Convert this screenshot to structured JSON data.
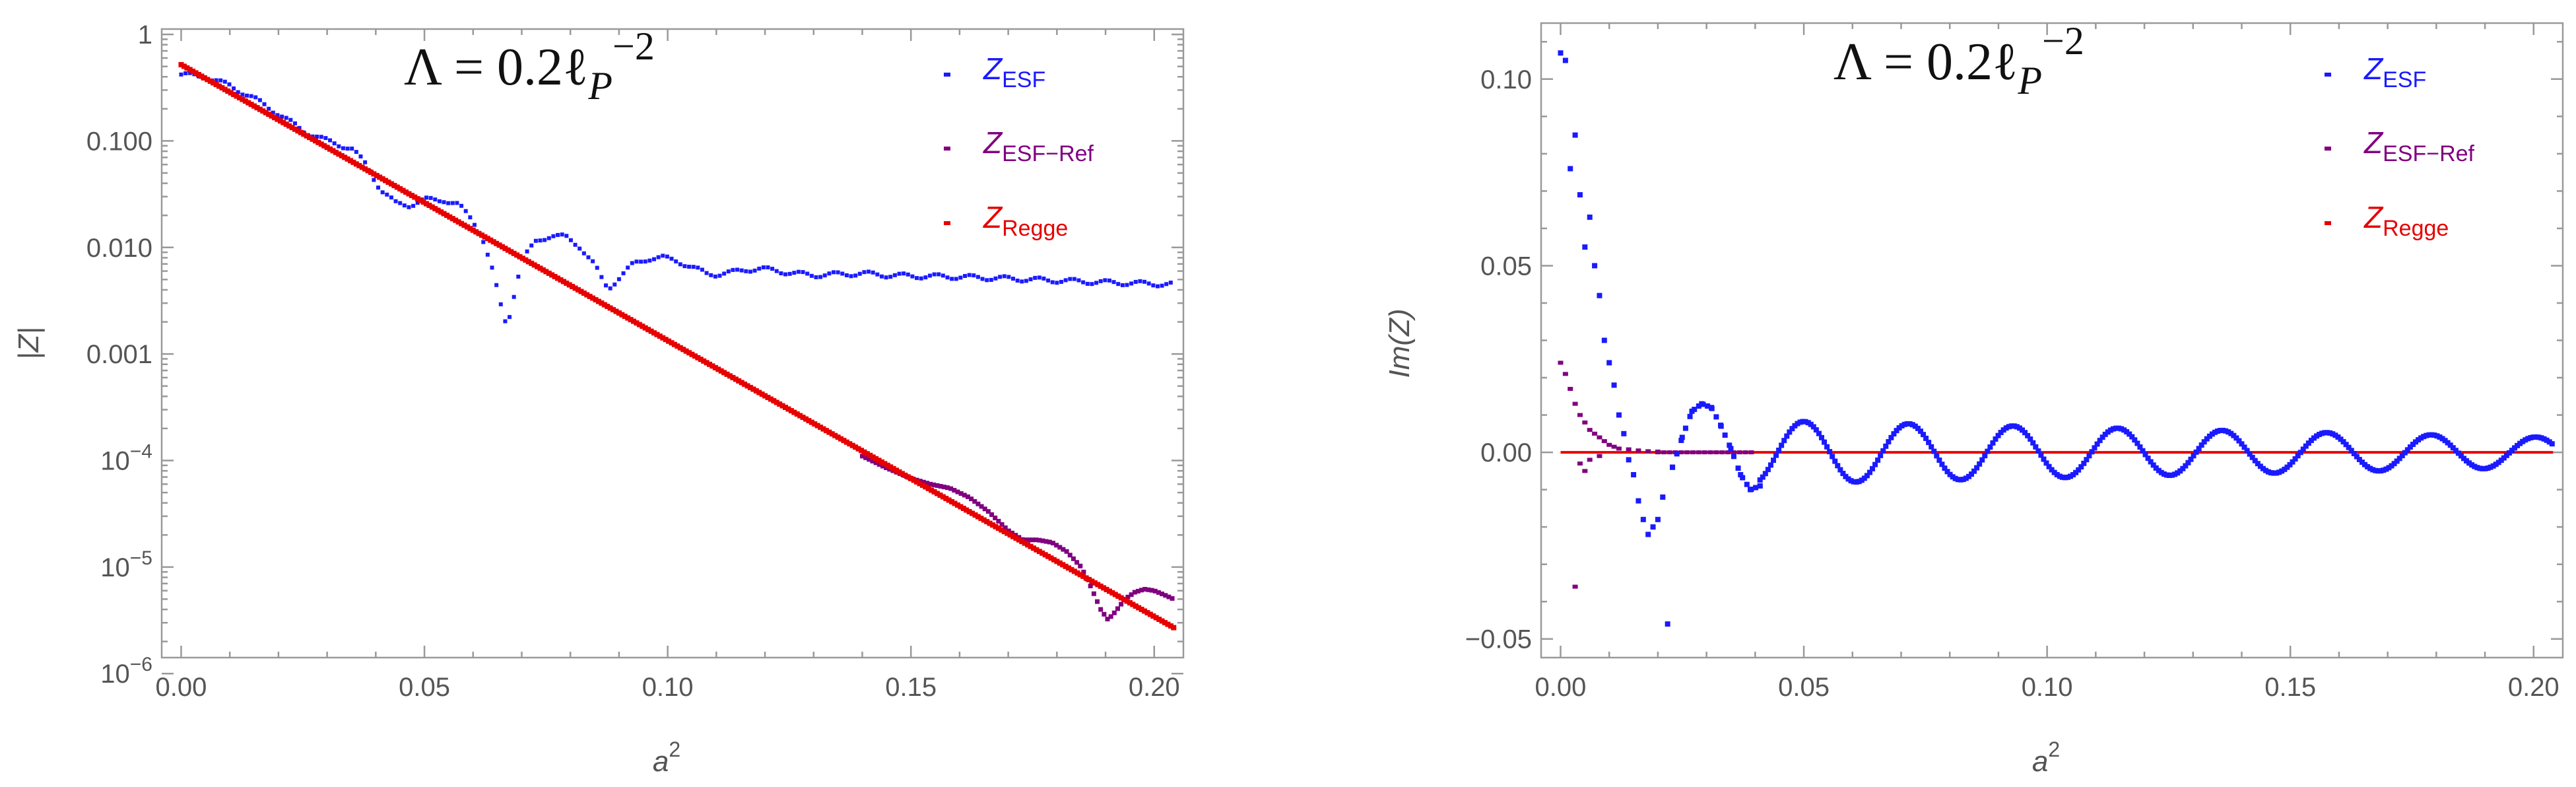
{
  "chart_data": [
    {
      "type": "scatter",
      "id": "left",
      "yscale": "log",
      "title": "Λ = 0.2ℓ_P^-2",
      "title_main": "Λ = 0.2ℓ",
      "title_sub": "P",
      "title_sup": "−2",
      "xlabel_base": "a",
      "xlabel_sup": "2",
      "ylabel": "|Z|",
      "xlim": [
        -0.004,
        0.206
      ],
      "ylim_log10": [
        -5.85,
        0.05
      ],
      "x_ticks": [
        0.0,
        0.05,
        0.1,
        0.15,
        0.2
      ],
      "x_tick_labels": [
        "0.00",
        "0.05",
        "0.10",
        "0.15",
        "0.20"
      ],
      "y_ticks_log10": [
        0,
        -1,
        -2,
        -3,
        -4,
        -5,
        -6
      ],
      "y_tick_labels": [
        {
          "base": "1",
          "exp": ""
        },
        {
          "base": "0.100",
          "exp": ""
        },
        {
          "base": "0.010",
          "exp": ""
        },
        {
          "base": "0.001",
          "exp": ""
        },
        {
          "base": "10",
          "exp": "−4"
        },
        {
          "base": "10",
          "exp": "−5"
        },
        {
          "base": "10",
          "exp": "−6"
        }
      ],
      "legend": [
        {
          "main": "Z",
          "sub": "ESF",
          "color": "#1a1aff"
        },
        {
          "main": "Z",
          "sub": "ESF−Ref",
          "color": "#800080"
        },
        {
          "main": "Z",
          "sub": "Regge",
          "color": "#e60000"
        }
      ],
      "series": {
        "esf": {
          "color": "#1a1aff",
          "points": [
            [
              0.0,
              0.42
            ],
            [
              0.005,
              0.4
            ],
            [
              0.01,
              0.33
            ],
            [
              0.015,
              0.25
            ],
            [
              0.02,
              0.18
            ],
            [
              0.025,
              0.125
            ],
            [
              0.03,
              0.1
            ],
            [
              0.035,
              0.085
            ],
            [
              0.038,
              0.06
            ],
            [
              0.041,
              0.035
            ],
            [
              0.044,
              0.026
            ],
            [
              0.047,
              0.025
            ],
            [
              0.05,
              0.028
            ],
            [
              0.054,
              0.028
            ],
            [
              0.057,
              0.025
            ],
            [
              0.06,
              0.018
            ],
            [
              0.062,
              0.012
            ],
            [
              0.064,
              0.006
            ],
            [
              0.066,
              0.0025
            ],
            [
              0.067,
              0.0018
            ],
            [
              0.068,
              0.003
            ],
            [
              0.07,
              0.0075
            ],
            [
              0.073,
              0.0115
            ],
            [
              0.076,
              0.013
            ],
            [
              0.079,
              0.0125
            ],
            [
              0.082,
              0.0102
            ],
            [
              0.085,
              0.0068
            ],
            [
              0.087,
              0.0045
            ],
            [
              0.088,
              0.0042
            ],
            [
              0.09,
              0.0052
            ],
            [
              0.093,
              0.007
            ],
            [
              0.096,
              0.0079
            ],
            [
              0.099,
              0.008
            ],
            [
              0.102,
              0.0075
            ],
            [
              0.105,
              0.0065
            ],
            [
              0.108,
              0.0057
            ],
            [
              0.11,
              0.0056
            ],
            [
              0.113,
              0.0058
            ],
            [
              0.116,
              0.0062
            ],
            [
              0.119,
              0.0063
            ],
            [
              0.122,
              0.0061
            ],
            [
              0.126,
              0.0057
            ],
            [
              0.13,
              0.0055
            ],
            [
              0.135,
              0.0056
            ],
            [
              0.14,
              0.0057
            ],
            [
              0.145,
              0.0055
            ],
            [
              0.15,
              0.0054
            ],
            [
              0.16,
              0.0053
            ],
            [
              0.17,
              0.0051
            ],
            [
              0.18,
              0.0049
            ],
            [
              0.19,
              0.0047
            ],
            [
              0.204,
              0.0045
            ]
          ]
        },
        "esf_ref": {
          "color": "#800080",
          "points": [
            [
              0.14,
              0.00011
            ],
            [
              0.145,
              8.5e-05
            ],
            [
              0.15,
              6.8e-05
            ],
            [
              0.154,
              6e-05
            ],
            [
              0.158,
              5.5e-05
            ],
            [
              0.162,
              4.5e-05
            ],
            [
              0.166,
              3.3e-05
            ],
            [
              0.17,
              2.2e-05
            ],
            [
              0.173,
              1.8e-05
            ],
            [
              0.176,
              1.8e-05
            ],
            [
              0.179,
              1.7e-05
            ],
            [
              0.182,
              1.4e-05
            ],
            [
              0.185,
              1e-05
            ],
            [
              0.187,
              6.5e-06
            ],
            [
              0.189,
              4e-06
            ],
            [
              0.1905,
              3.2e-06
            ],
            [
              0.192,
              3.8e-06
            ],
            [
              0.194,
              5e-06
            ],
            [
              0.196,
              5.8e-06
            ],
            [
              0.198,
              6.2e-06
            ],
            [
              0.2,
              6e-06
            ],
            [
              0.202,
              5.5e-06
            ],
            [
              0.204,
              5e-06
            ]
          ]
        },
        "regge": {
          "color": "#e60000",
          "points": [
            [
              0.0,
              0.52
            ],
            [
              0.204,
              2.7e-06
            ]
          ]
        }
      }
    },
    {
      "type": "scatter",
      "id": "right",
      "yscale": "linear",
      "title": "Λ = 0.2ℓ_P^-2",
      "title_main": "Λ = 0.2ℓ",
      "title_sub": "P",
      "title_sup": "−2",
      "xlabel_base": "a",
      "xlabel_sup": "2",
      "ylabel": "Im(Z)",
      "xlim": [
        -0.004,
        0.206
      ],
      "ylim": [
        -0.055,
        0.115
      ],
      "x_ticks": [
        0.0,
        0.05,
        0.1,
        0.15,
        0.2
      ],
      "x_tick_labels": [
        "0.00",
        "0.05",
        "0.10",
        "0.15",
        "0.20"
      ],
      "y_ticks": [
        -0.05,
        0.0,
        0.05,
        0.1
      ],
      "y_tick_labels": [
        "−0.05",
        "0.00",
        "0.05",
        "0.10"
      ],
      "legend": [
        {
          "main": "Z",
          "sub": "ESF",
          "color": "#1a1aff"
        },
        {
          "main": "Z",
          "sub": "ESF−Ref",
          "color": "#800080"
        },
        {
          "main": "Z",
          "sub": "Regge",
          "color": "#e60000"
        }
      ],
      "series": {
        "esf": {
          "color": "#1a1aff",
          "points": [
            [
              0.0,
              0.107
            ],
            [
              0.001,
              0.105
            ],
            [
              0.002,
              0.076
            ],
            [
              0.003,
              0.085
            ],
            [
              0.004,
              0.069
            ],
            [
              0.005,
              0.055
            ],
            [
              0.006,
              0.063
            ],
            [
              0.007,
              0.05
            ],
            [
              0.008,
              0.042
            ],
            [
              0.009,
              0.03
            ],
            [
              0.01,
              0.024
            ],
            [
              0.011,
              0.018
            ],
            [
              0.012,
              0.01
            ],
            [
              0.013,
              0.005
            ],
            [
              0.014,
              -0.002
            ],
            [
              0.015,
              -0.006
            ],
            [
              0.016,
              -0.013
            ],
            [
              0.017,
              -0.018
            ],
            [
              0.018,
              -0.022
            ],
            [
              0.019,
              -0.02
            ],
            [
              0.02,
              -0.018
            ],
            [
              0.021,
              -0.012
            ],
            [
              0.022,
              -0.046
            ],
            [
              0.023,
              -0.004
            ],
            [
              0.025,
              0.004
            ],
            [
              0.027,
              0.011
            ],
            [
              0.029,
              0.013
            ],
            [
              0.031,
              0.012
            ],
            [
              0.033,
              0.007
            ],
            [
              0.035,
              0.001
            ],
            [
              0.037,
              -0.006
            ],
            [
              0.039,
              -0.01
            ],
            [
              0.041,
              -0.009
            ]
          ]
        },
        "esf_ref": {
          "color": "#800080",
          "points": [
            [
              0.0,
              0.024
            ],
            [
              0.001,
              0.021
            ],
            [
              0.002,
              0.017
            ],
            [
              0.003,
              0.013
            ],
            [
              0.004,
              0.01
            ],
            [
              0.005,
              0.008
            ],
            [
              0.006,
              0.006
            ],
            [
              0.007,
              0.005
            ],
            [
              0.008,
              0.004
            ],
            [
              0.009,
              0.003
            ],
            [
              0.01,
              0.002
            ],
            [
              0.011,
              0.0015
            ],
            [
              0.012,
              0.001
            ],
            [
              0.014,
              0.0008
            ],
            [
              0.016,
              0.0005
            ],
            [
              0.018,
              0.0003
            ],
            [
              0.02,
              0.0002
            ],
            [
              0.003,
              -0.036
            ],
            [
              0.004,
              -0.003
            ],
            [
              0.005,
              -0.005
            ],
            [
              0.006,
              -0.002
            ],
            [
              0.008,
              -0.001
            ]
          ]
        },
        "regge": {
          "color": "#e60000",
          "points": [
            [
              0.0,
              0.0
            ],
            [
              0.204,
              0.0
            ]
          ]
        },
        "esf_tail_wave": {
          "x_start": 0.041,
          "x_end": 0.204,
          "amplitude_start": 0.0085,
          "amplitude_end": 0.004,
          "period": 0.0215,
          "peak_at": 0.05
        }
      }
    }
  ]
}
